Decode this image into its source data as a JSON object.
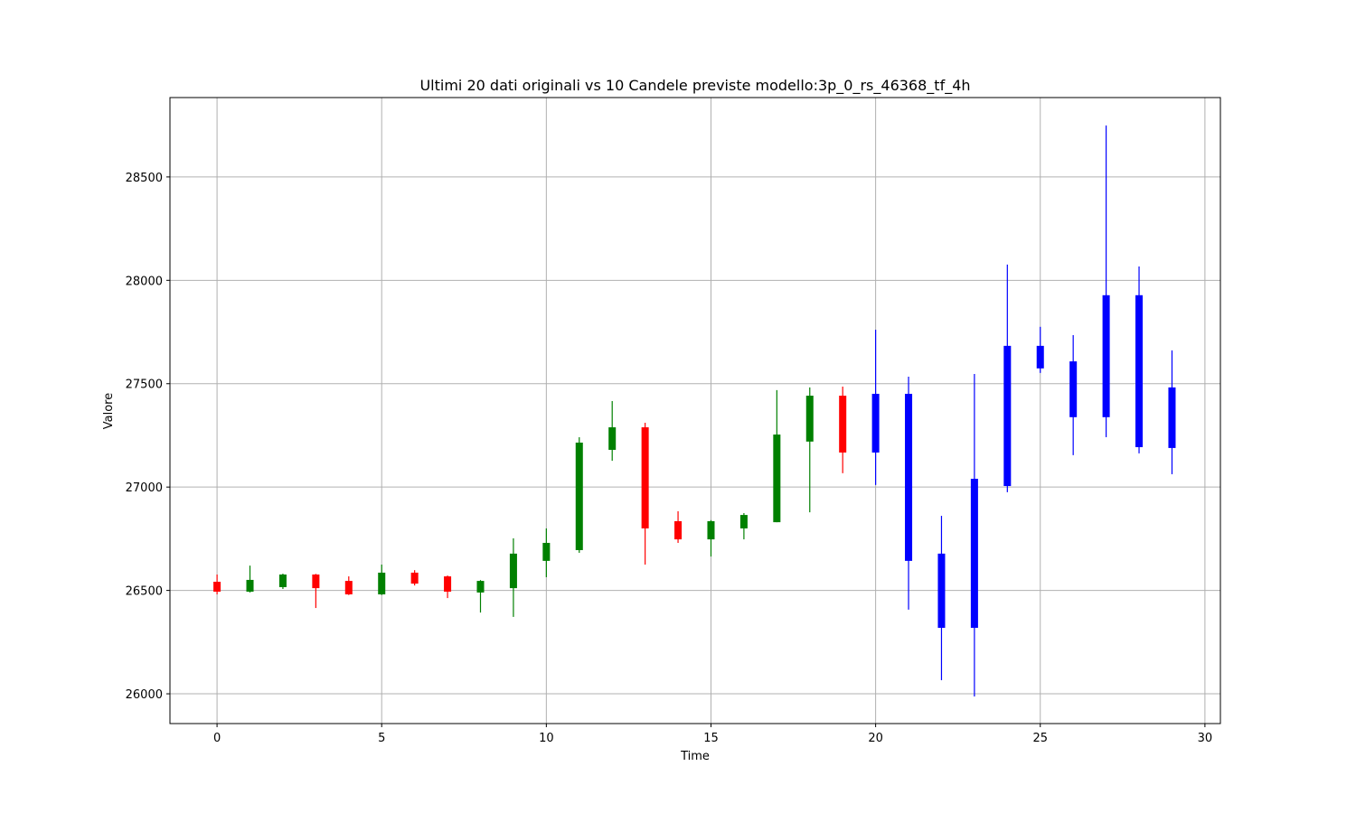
{
  "chart_data": {
    "type": "candlestick",
    "title": "Ultimi 20 dati originali vs 10 Candele previste modello:3p_0_rs_46368_tf_4h",
    "x_label": "Time",
    "y_label": "Valore",
    "x": [
      0,
      1,
      2,
      3,
      4,
      5,
      6,
      7,
      8,
      9,
      10,
      11,
      12,
      13,
      14,
      15,
      16,
      17,
      18,
      19,
      20,
      21,
      22,
      23,
      24,
      25,
      26,
      27,
      28,
      29
    ],
    "open": [
      26542,
      26494,
      26516,
      26577,
      26546,
      26481,
      26586,
      26568,
      26490,
      26511,
      26643,
      26695,
      27180,
      27289,
      26835,
      26747,
      26800,
      26830,
      27220,
      27442,
      27167,
      27451,
      26678,
      26319,
      27005,
      27574,
      27338,
      27338,
      27193,
      27189
    ],
    "high": [
      26577,
      26620,
      26581,
      26580,
      26568,
      26625,
      26598,
      26572,
      26550,
      26752,
      26800,
      27241,
      27416,
      27311,
      26883,
      26840,
      26874,
      27469,
      27482,
      27486,
      27761,
      27534,
      26861,
      27547,
      28076,
      27775,
      27735,
      28749,
      28067,
      27661
    ],
    "low": [
      26481,
      26490,
      26507,
      26415,
      26478,
      26478,
      26524,
      26463,
      26393,
      26372,
      26564,
      26682,
      27127,
      26625,
      26730,
      26664,
      26747,
      26830,
      26878,
      27067,
      27010,
      26407,
      26066,
      25987,
      26975,
      27552,
      27154,
      27241,
      27163,
      27062
    ],
    "close": [
      26494,
      26551,
      26577,
      26511,
      26481,
      26586,
      26533,
      26494,
      26546,
      26678,
      26730,
      27215,
      27289,
      26800,
      26747,
      26835,
      26865,
      27254,
      27442,
      27167,
      27451,
      26643,
      26319,
      27040,
      27683,
      27683,
      27608,
      27928,
      27928,
      27482
    ],
    "colors": [
      "#ff0000",
      "#008000",
      "#008000",
      "#ff0000",
      "#ff0000",
      "#008000",
      "#ff0000",
      "#ff0000",
      "#008000",
      "#008000",
      "#008000",
      "#008000",
      "#008000",
      "#ff0000",
      "#ff0000",
      "#008000",
      "#008000",
      "#008000",
      "#008000",
      "#ff0000",
      "#0000ff",
      "#0000ff",
      "#0000ff",
      "#0000ff",
      "#0000ff",
      "#0000ff",
      "#0000ff",
      "#0000ff",
      "#0000ff",
      "#0000ff"
    ],
    "xlim": [
      -1.43,
      30.47
    ],
    "ylim": [
      25856,
      28884
    ],
    "xticks": [
      0,
      5,
      10,
      15,
      20,
      25,
      30
    ],
    "yticks": [
      26000,
      26500,
      27000,
      27500,
      28000,
      28500
    ],
    "grid": true
  }
}
